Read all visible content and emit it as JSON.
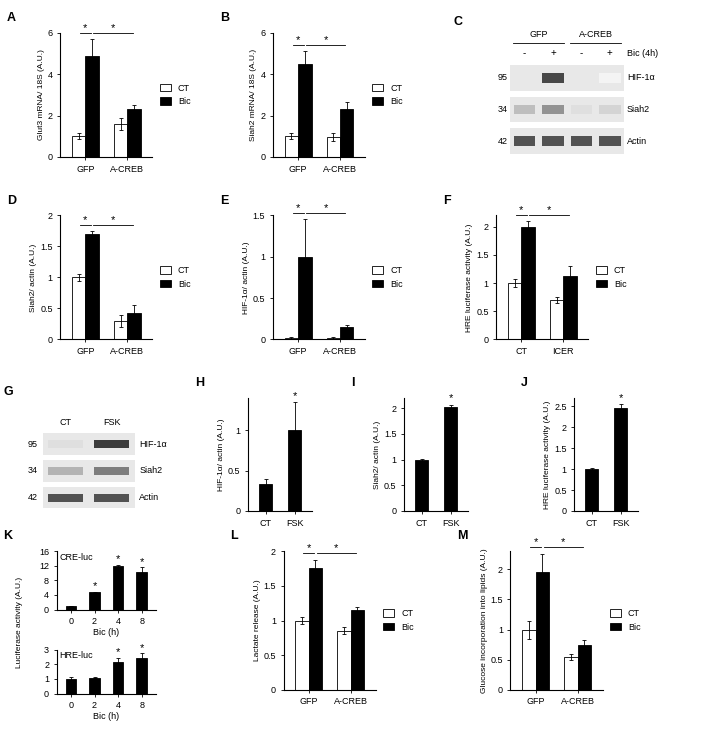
{
  "chart_data": [
    {
      "panel": "A",
      "type": "bar",
      "ylabel": "Glut3 mRNA/ 18S (A.U.)",
      "categories": [
        "GFP",
        "A-CREB"
      ],
      "series": [
        {
          "name": "CT",
          "color": "#ffffff",
          "values": [
            1.0,
            1.6
          ],
          "errors": [
            0.15,
            0.3
          ]
        },
        {
          "name": "Bic",
          "color": "#000000",
          "values": [
            4.9,
            2.3
          ],
          "errors": [
            0.8,
            0.2
          ]
        }
      ],
      "ylim": [
        0,
        6
      ],
      "yticks": [
        0,
        2,
        4,
        6
      ],
      "legend": "right",
      "significance": [
        {
          "label": "*",
          "from": [
            "GFP",
            "CT"
          ],
          "to": [
            "GFP",
            "Bic"
          ]
        },
        {
          "label": "*",
          "from": [
            "GFP",
            "Bic"
          ],
          "to": [
            "A-CREB",
            "Bic"
          ]
        }
      ]
    },
    {
      "panel": "B",
      "type": "bar",
      "ylabel": "Siah2 mRNA/ 18S (A.U.)",
      "categories": [
        "GFP",
        "A-CREB"
      ],
      "series": [
        {
          "name": "CT",
          "color": "#ffffff",
          "values": [
            1.0,
            0.95
          ],
          "errors": [
            0.15,
            0.2
          ]
        },
        {
          "name": "Bic",
          "color": "#000000",
          "values": [
            4.5,
            2.3
          ],
          "errors": [
            0.6,
            0.35
          ]
        }
      ],
      "ylim": [
        0,
        6
      ],
      "yticks": [
        0,
        2,
        4,
        6
      ],
      "legend": "right",
      "significance": [
        {
          "label": "*",
          "from": [
            "GFP",
            "CT"
          ],
          "to": [
            "GFP",
            "Bic"
          ]
        },
        {
          "label": "*",
          "from": [
            "GFP",
            "Bic"
          ],
          "to": [
            "A-CREB",
            "Bic"
          ]
        }
      ]
    },
    {
      "panel": "C",
      "type": "blot",
      "groups": [
        {
          "label": "GFP",
          "lanes": 2
        },
        {
          "label": "A-CREB",
          "lanes": 2
        }
      ],
      "treatment": {
        "label": "Bic (4h)",
        "signs": [
          "-",
          "+",
          "-",
          "+"
        ]
      },
      "rows": [
        {
          "name": "HIF-1α",
          "mw": 95,
          "intensity": [
            0,
            0.85,
            0,
            0.05
          ]
        },
        {
          "name": "Siah2",
          "mw": 34,
          "intensity": [
            0.3,
            0.5,
            0.15,
            0.2
          ]
        },
        {
          "name": "Actin",
          "mw": 42,
          "intensity": [
            0.8,
            0.8,
            0.8,
            0.8
          ]
        }
      ]
    },
    {
      "panel": "D",
      "type": "bar",
      "ylabel": "Siah2/ actin (A.U.)",
      "categories": [
        "GFP",
        "A-CREB"
      ],
      "series": [
        {
          "name": "CT",
          "color": "#ffffff",
          "values": [
            1.0,
            0.3
          ],
          "errors": [
            0.05,
            0.1
          ]
        },
        {
          "name": "Bic",
          "color": "#000000",
          "values": [
            1.7,
            0.43
          ],
          "errors": [
            0.05,
            0.12
          ]
        }
      ],
      "ylim": [
        0,
        2
      ],
      "yticks": [
        0,
        0.5,
        1,
        1.5,
        2
      ],
      "legend": "right",
      "significance": [
        {
          "label": "*",
          "from": [
            "GFP",
            "CT"
          ],
          "to": [
            "GFP",
            "Bic"
          ]
        },
        {
          "label": "*",
          "from": [
            "GFP",
            "Bic"
          ],
          "to": [
            "A-CREB",
            "Bic"
          ]
        }
      ]
    },
    {
      "panel": "E",
      "type": "bar",
      "ylabel": "HIF-1α/ actin (A.U.)",
      "categories": [
        "GFP",
        "A-CREB"
      ],
      "series": [
        {
          "name": "CT",
          "color": "#ffffff",
          "values": [
            0.02,
            0.02
          ],
          "errors": [
            0.01,
            0.01
          ]
        },
        {
          "name": "Bic",
          "color": "#000000",
          "values": [
            1.0,
            0.15
          ],
          "errors": [
            0.45,
            0.03
          ]
        }
      ],
      "ylim": [
        0,
        1.5
      ],
      "yticks": [
        0,
        0.5,
        1,
        1.5
      ],
      "legend": "right",
      "significance": [
        {
          "label": "*",
          "from": [
            "GFP",
            "CT"
          ],
          "to": [
            "GFP",
            "Bic"
          ]
        },
        {
          "label": "*",
          "from": [
            "GFP",
            "Bic"
          ],
          "to": [
            "A-CREB",
            "Bic"
          ]
        }
      ]
    },
    {
      "panel": "F",
      "type": "bar",
      "ylabel": "HRE luciferase activity (A.U.)",
      "categories": [
        "CT",
        "ICER"
      ],
      "series": [
        {
          "name": "CT",
          "color": "#ffffff",
          "values": [
            1.0,
            0.7
          ],
          "errors": [
            0.07,
            0.05
          ]
        },
        {
          "name": "Bic",
          "color": "#000000",
          "values": [
            2.0,
            1.13
          ],
          "errors": [
            0.1,
            0.18
          ]
        }
      ],
      "ylim": [
        0,
        2.2
      ],
      "yticks": [
        0,
        0.5,
        1,
        1.5,
        2
      ],
      "legend": "right",
      "significance": [
        {
          "label": "*",
          "from": [
            "CT",
            "CT"
          ],
          "to": [
            "CT",
            "Bic"
          ]
        },
        {
          "label": "*",
          "from": [
            "CT",
            "Bic"
          ],
          "to": [
            "ICER",
            "Bic"
          ]
        }
      ]
    },
    {
      "panel": "G",
      "type": "blot",
      "lanes": [
        "CT",
        "FSK"
      ],
      "rows": [
        {
          "name": "HIF-1α",
          "mw": 95,
          "intensity": [
            0.15,
            0.9
          ]
        },
        {
          "name": "Siah2",
          "mw": 34,
          "intensity": [
            0.35,
            0.6
          ]
        },
        {
          "name": "Actin",
          "mw": 42,
          "intensity": [
            0.8,
            0.8
          ]
        }
      ]
    },
    {
      "panel": "H",
      "type": "bar",
      "ylabel": "HIF-1α/ actin (A.U.)",
      "categories": [
        "CT",
        "FSK"
      ],
      "values": [
        0.33,
        1.0
      ],
      "errors": [
        0.07,
        0.35
      ],
      "color": "#000000",
      "ylim": [
        0,
        1.4
      ],
      "yticks": [
        0,
        0.5,
        1
      ],
      "annotations": [
        null,
        "*"
      ]
    },
    {
      "panel": "I",
      "type": "bar",
      "ylabel": "Siah2/ actin (A.U.)",
      "categories": [
        "CT",
        "FSK"
      ],
      "values": [
        1.0,
        2.03
      ],
      "errors": [
        0.02,
        0.04
      ],
      "color": "#000000",
      "ylim": [
        0,
        2.2
      ],
      "yticks": [
        0,
        0.5,
        1,
        1.5,
        2
      ],
      "annotations": [
        null,
        "*"
      ]
    },
    {
      "panel": "J",
      "type": "bar",
      "ylabel": "HRE luciferase activity (A.U.)",
      "categories": [
        "CT",
        "FSK"
      ],
      "values": [
        1.0,
        2.45
      ],
      "errors": [
        0.02,
        0.1
      ],
      "color": "#000000",
      "ylim": [
        0,
        2.7
      ],
      "yticks": [
        0,
        0.5,
        1,
        1.5,
        2,
        2.5
      ],
      "annotations": [
        null,
        "*"
      ]
    },
    {
      "panel": "K",
      "type": "bar_pair",
      "ylabel": "Luciferase activity (A.U.)",
      "charts": [
        {
          "type": "bar",
          "title": "CRE-luc",
          "xlabel": "Bic (h)",
          "categories": [
            "0",
            "2",
            "4",
            "8"
          ],
          "values": [
            1,
            4.7,
            11.8,
            10.3
          ],
          "errors": [
            0.1,
            0.2,
            0.5,
            1.3
          ],
          "color": "#000000",
          "ylim": [
            0,
            16
          ],
          "yticks": [
            0,
            4,
            8,
            12,
            16
          ],
          "annotations": [
            null,
            "*",
            "*",
            "*"
          ]
        },
        {
          "type": "bar",
          "title": "HRE-luc",
          "xlabel": "Bic (h)",
          "categories": [
            "0",
            "2",
            "4",
            "8"
          ],
          "values": [
            1,
            1.08,
            2.15,
            2.45
          ],
          "errors": [
            0.1,
            0.03,
            0.3,
            0.3
          ],
          "color": "#000000",
          "ylim": [
            0,
            3
          ],
          "yticks": [
            0,
            1,
            2,
            3
          ],
          "annotations": [
            null,
            null,
            "*",
            "*"
          ]
        }
      ]
    },
    {
      "panel": "L",
      "type": "bar",
      "ylabel": "Lactate release (A.U.)",
      "categories": [
        "GFP",
        "A-CREB"
      ],
      "series": [
        {
          "name": "CT",
          "color": "#ffffff",
          "values": [
            1.0,
            0.85
          ],
          "errors": [
            0.05,
            0.05
          ]
        },
        {
          "name": "Bic",
          "color": "#000000",
          "values": [
            1.75,
            1.15
          ],
          "errors": [
            0.12,
            0.05
          ]
        }
      ],
      "ylim": [
        0,
        2
      ],
      "yticks": [
        0,
        0.5,
        1,
        1.5,
        2
      ],
      "legend": "right",
      "significance": [
        {
          "label": "*",
          "from": [
            "GFP",
            "CT"
          ],
          "to": [
            "GFP",
            "Bic"
          ]
        },
        {
          "label": "*",
          "from": [
            "GFP",
            "Bic"
          ],
          "to": [
            "A-CREB",
            "Bic"
          ]
        }
      ]
    },
    {
      "panel": "M",
      "type": "bar",
      "ylabel": "Glucose incorporation into lipids (A.U.)",
      "categories": [
        "GFP",
        "A-CREB"
      ],
      "series": [
        {
          "name": "CT",
          "color": "#ffffff",
          "values": [
            1.0,
            0.55
          ],
          "errors": [
            0.15,
            0.05
          ]
        },
        {
          "name": "Bic",
          "color": "#000000",
          "values": [
            1.95,
            0.75
          ],
          "errors": [
            0.3,
            0.08
          ]
        }
      ],
      "ylim": [
        0,
        2.3
      ],
      "yticks": [
        0,
        0.5,
        1,
        1.5,
        2
      ],
      "legend": "right",
      "significance": [
        {
          "label": "*",
          "from": [
            "GFP",
            "CT"
          ],
          "to": [
            "GFP",
            "Bic"
          ]
        },
        {
          "label": "*",
          "from": [
            "GFP",
            "Bic"
          ],
          "to": [
            "A-CREB",
            "Bic"
          ]
        }
      ]
    }
  ]
}
